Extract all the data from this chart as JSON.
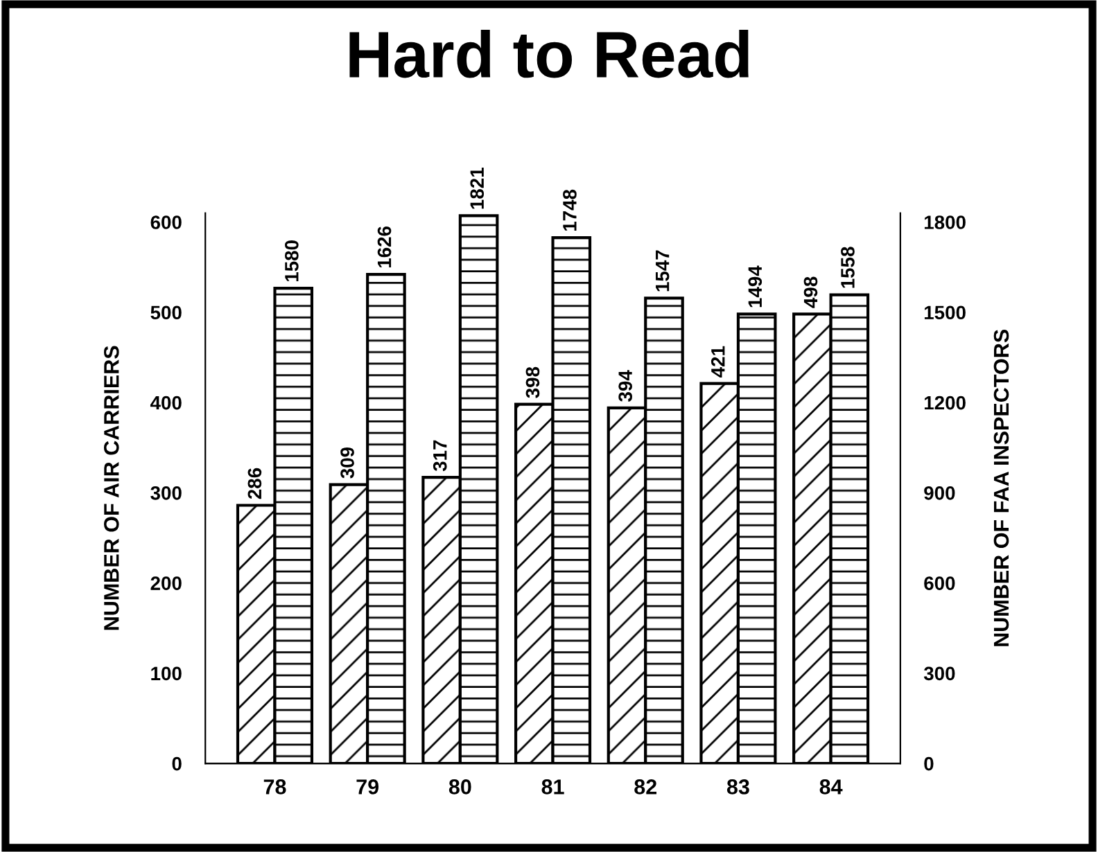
{
  "chart_data": {
    "type": "bar",
    "title": "Hard to Read",
    "categories": [
      "78",
      "79",
      "80",
      "81",
      "82",
      "83",
      "84"
    ],
    "series": [
      {
        "color": "#000000",
        "values": [
          286,
          309,
          317,
          398,
          394,
          421,
          498
        ]
      },
      {
        "color": "#000000",
        "axis": "y2",
        "values": [
          1580,
          1626,
          1821,
          1748,
          1547,
          1494,
          1558
        ]
      }
    ],
    "ylabel": "NUMBER OF AIR CARRIERS",
    "y2label": "NUMBER OF FAA INSPECTORS",
    "ylim": [
      0,
      610
    ],
    "yticks": [
      0,
      100,
      200,
      300,
      400,
      500,
      600
    ],
    "y2lim": [
      0,
      1830
    ],
    "y2ticks": [
      0,
      300,
      600,
      900,
      1200,
      1500,
      1800
    ],
    "data_labels": true,
    "grid": false,
    "legend": false
  }
}
